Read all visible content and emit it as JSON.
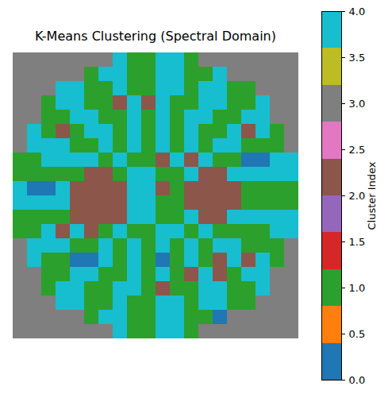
{
  "chart_data": {
    "type": "heatmap",
    "title": "K-Means Clustering (Spectral Domain)",
    "tick_labels": false,
    "cells": [
      [
        3,
        3,
        3,
        3,
        3,
        3,
        3,
        4,
        1,
        1,
        4,
        4,
        1,
        3,
        3,
        3,
        3,
        3,
        3,
        3
      ],
      [
        3,
        3,
        3,
        3,
        3,
        1,
        4,
        4,
        1,
        1,
        4,
        4,
        1,
        1,
        4,
        3,
        3,
        3,
        3,
        3
      ],
      [
        3,
        3,
        3,
        4,
        4,
        1,
        1,
        4,
        1,
        1,
        4,
        4,
        1,
        4,
        4,
        1,
        1,
        3,
        3,
        3
      ],
      [
        3,
        3,
        1,
        4,
        4,
        1,
        1,
        2,
        4,
        2,
        4,
        1,
        1,
        4,
        4,
        1,
        1,
        4,
        3,
        3
      ],
      [
        3,
        3,
        1,
        1,
        4,
        4,
        1,
        1,
        4,
        1,
        4,
        1,
        4,
        4,
        1,
        1,
        4,
        4,
        3,
        3
      ],
      [
        3,
        4,
        1,
        2,
        1,
        4,
        4,
        1,
        4,
        1,
        4,
        1,
        4,
        1,
        1,
        4,
        2,
        4,
        1,
        3
      ],
      [
        3,
        4,
        4,
        4,
        1,
        1,
        4,
        1,
        4,
        1,
        4,
        1,
        4,
        1,
        4,
        4,
        1,
        1,
        1,
        3
      ],
      [
        1,
        1,
        4,
        4,
        4,
        4,
        1,
        4,
        1,
        1,
        2,
        4,
        2,
        4,
        1,
        1,
        0,
        0,
        4,
        4
      ],
      [
        1,
        1,
        1,
        1,
        1,
        2,
        2,
        1,
        4,
        4,
        1,
        1,
        4,
        2,
        2,
        4,
        4,
        4,
        4,
        4
      ],
      [
        4,
        0,
        0,
        4,
        2,
        2,
        2,
        2,
        4,
        4,
        2,
        1,
        2,
        2,
        2,
        2,
        1,
        1,
        1,
        1
      ],
      [
        4,
        4,
        4,
        4,
        2,
        2,
        2,
        2,
        4,
        4,
        1,
        1,
        2,
        2,
        2,
        2,
        1,
        1,
        1,
        1
      ],
      [
        1,
        1,
        1,
        1,
        2,
        2,
        2,
        2,
        4,
        4,
        1,
        1,
        4,
        2,
        2,
        4,
        4,
        4,
        4,
        4
      ],
      [
        1,
        1,
        4,
        2,
        4,
        2,
        1,
        4,
        1,
        1,
        4,
        4,
        1,
        4,
        1,
        1,
        1,
        1,
        4,
        4
      ],
      [
        3,
        4,
        4,
        4,
        1,
        1,
        4,
        1,
        4,
        1,
        4,
        1,
        4,
        1,
        4,
        4,
        1,
        1,
        1,
        3
      ],
      [
        3,
        4,
        1,
        1,
        0,
        0,
        4,
        1,
        4,
        1,
        0,
        1,
        4,
        1,
        2,
        4,
        2,
        4,
        1,
        3
      ],
      [
        3,
        3,
        1,
        1,
        4,
        4,
        1,
        1,
        4,
        1,
        4,
        1,
        2,
        4,
        2,
        1,
        4,
        4,
        3,
        3
      ],
      [
        3,
        3,
        1,
        4,
        4,
        1,
        1,
        4,
        4,
        1,
        2,
        1,
        1,
        4,
        4,
        1,
        1,
        4,
        3,
        3
      ],
      [
        3,
        3,
        3,
        4,
        4,
        1,
        1,
        4,
        1,
        1,
        4,
        4,
        1,
        4,
        4,
        1,
        1,
        3,
        3,
        3
      ],
      [
        3,
        3,
        3,
        3,
        3,
        1,
        4,
        4,
        1,
        1,
        4,
        4,
        1,
        1,
        0,
        3,
        3,
        3,
        3,
        3
      ],
      [
        3,
        3,
        3,
        3,
        3,
        3,
        3,
        4,
        1,
        1,
        4,
        4,
        1,
        3,
        3,
        3,
        3,
        3,
        3,
        3
      ]
    ],
    "colorbar": {
      "label": "Cluster Index",
      "range": [
        0,
        4
      ],
      "ticks": [
        {
          "value": 0,
          "label": "0.0"
        },
        {
          "value": 0.5,
          "label": "0.5"
        },
        {
          "value": 1,
          "label": "1.0"
        },
        {
          "value": 1.5,
          "label": "1.5"
        },
        {
          "value": 2,
          "label": "2.0"
        },
        {
          "value": 2.5,
          "label": "2.5"
        },
        {
          "value": 3,
          "label": "3.0"
        },
        {
          "value": 3.5,
          "label": "3.5"
        },
        {
          "value": 4,
          "label": "4.0"
        }
      ],
      "colors": [
        "#1f77b4",
        "#ff7f0e",
        "#2ca02c",
        "#d62728",
        "#9467bd",
        "#8c564b",
        "#e377c2",
        "#7f7f7f",
        "#bcbd22",
        "#17becf"
      ]
    }
  }
}
